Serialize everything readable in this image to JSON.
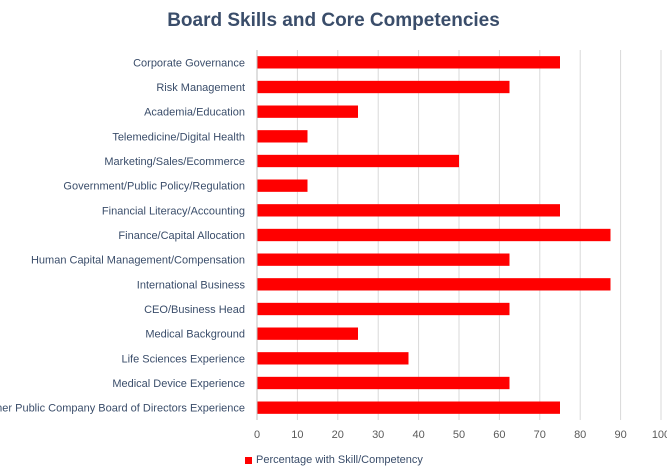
{
  "chart_data": {
    "type": "bar",
    "orientation": "horizontal",
    "title": "Board Skills and Core Competencies",
    "categories": [
      "Corporate Governance",
      "Risk Management",
      "Academia/Education",
      "Telemedicine/Digital Health",
      "Marketing/Sales/Ecommerce",
      "Government/Public Policy/Regulation",
      "Financial Literacy/Accounting",
      "Finance/Capital Allocation",
      "Human Capital Management/Compensation",
      "International Business",
      "CEO/Business Head",
      "Medical Background",
      "Life Sciences Experience",
      "Medical Device Experience",
      "Other Public Company Board of Directors Experience"
    ],
    "series": [
      {
        "name": "Percentage with Skill/Competency",
        "values": [
          75,
          62.5,
          25,
          12.5,
          50,
          12.5,
          75,
          87.5,
          62.5,
          87.5,
          62.5,
          25,
          37.5,
          62.5,
          75
        ]
      }
    ],
    "xlim": [
      0,
      100
    ],
    "xticks": [
      "0",
      "10",
      "20",
      "30",
      "40",
      "50",
      "60",
      "70",
      "80",
      "90",
      "100"
    ],
    "grid": true,
    "legend_position": "bottom",
    "bar_color": "#ff0000",
    "title_color": "#3a4d6a"
  }
}
